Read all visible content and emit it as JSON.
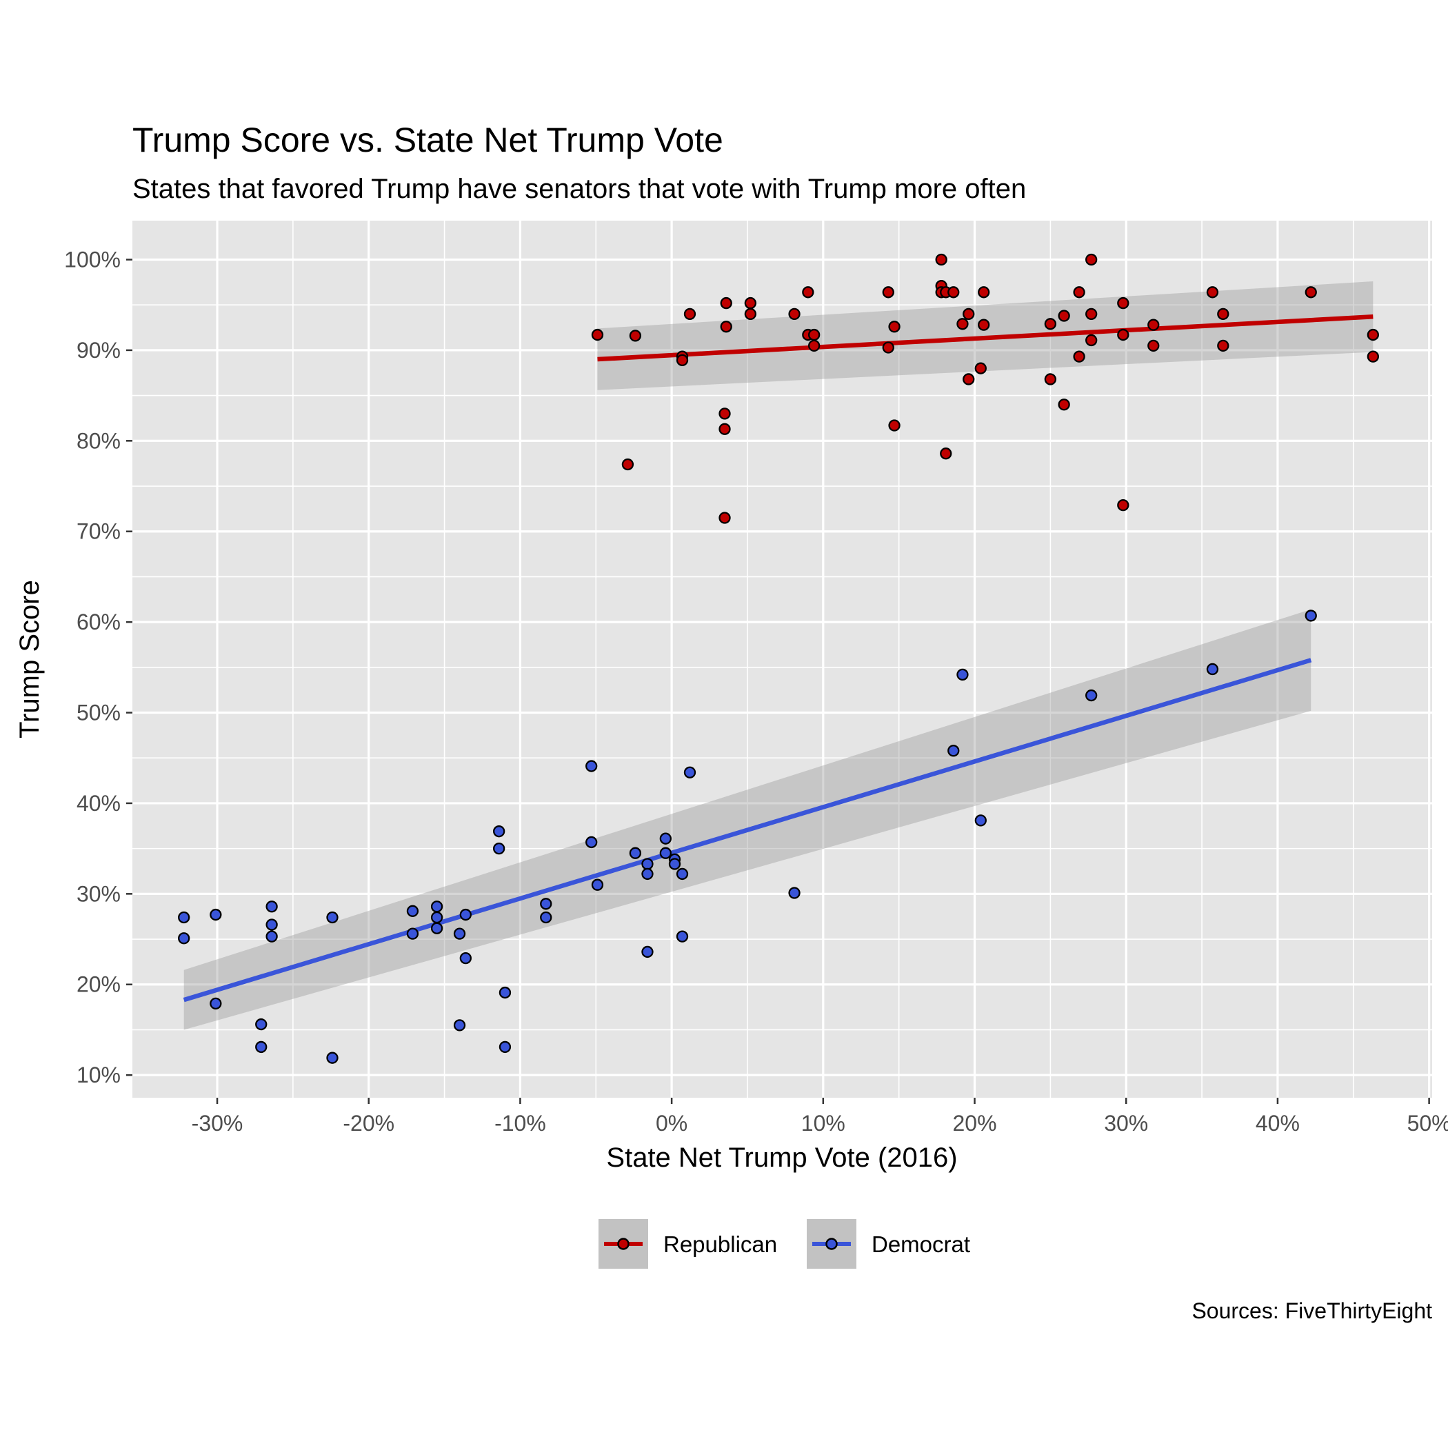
{
  "chart_data": {
    "type": "scatter",
    "title": "Trump Score vs. State Net Trump Vote",
    "subtitle": "States that favored Trump have senators that vote with Trump more often",
    "xlabel": "State Net Trump Vote (2016)",
    "ylabel": "Trump Score",
    "caption": "Sources: FiveThirtyEight",
    "xlim": [
      -35.6,
      50.2
    ],
    "ylim": [
      7.5,
      104.3
    ],
    "x_ticks": [
      -30,
      -20,
      -10,
      0,
      10,
      20,
      30,
      40,
      50
    ],
    "x_tick_labels": [
      "-30%",
      "-20%",
      "-10%",
      "0%",
      "10%",
      "20%",
      "30%",
      "40%",
      "50%"
    ],
    "y_ticks": [
      10,
      20,
      30,
      40,
      50,
      60,
      70,
      80,
      90,
      100
    ],
    "y_tick_labels": [
      "10%",
      "20%",
      "30%",
      "40%",
      "50%",
      "60%",
      "70%",
      "80%",
      "90%",
      "100%"
    ],
    "grid": true,
    "legend_position": "bottom",
    "series": [
      {
        "name": "Republican",
        "color": "#c00000",
        "fit": {
          "x": [
            -4.9,
            46.3
          ],
          "y": [
            89.0,
            93.7
          ],
          "ci_start": [
            85.6,
            92.4
          ],
          "ci_end": [
            89.8,
            97.6
          ]
        },
        "points": [
          [
            17.8,
            100
          ],
          [
            27.7,
            100
          ],
          [
            17.8,
            97.1
          ],
          [
            17.8,
            96.4
          ],
          [
            18.1,
            96.4
          ],
          [
            18.6,
            96.4
          ],
          [
            20.6,
            96.4
          ],
          [
            26.9,
            96.4
          ],
          [
            35.7,
            96.4
          ],
          [
            42.2,
            96.4
          ],
          [
            9.0,
            96.4
          ],
          [
            14.3,
            96.4
          ],
          [
            3.6,
            95.2
          ],
          [
            5.2,
            95.2
          ],
          [
            29.8,
            95.2
          ],
          [
            1.2,
            94.0
          ],
          [
            5.2,
            94.0
          ],
          [
            8.1,
            94.0
          ],
          [
            19.6,
            94.0
          ],
          [
            27.7,
            94.0
          ],
          [
            36.4,
            94.0
          ],
          [
            25.9,
            93.8
          ],
          [
            19.2,
            92.9
          ],
          [
            25.0,
            92.9
          ],
          [
            20.6,
            92.8
          ],
          [
            31.8,
            92.8
          ],
          [
            3.6,
            92.6
          ],
          [
            14.7,
            92.6
          ],
          [
            -4.9,
            91.7
          ],
          [
            -2.4,
            91.6
          ],
          [
            9.0,
            91.7
          ],
          [
            9.4,
            91.7
          ],
          [
            29.8,
            91.7
          ],
          [
            46.3,
            91.7
          ],
          [
            27.7,
            91.1
          ],
          [
            9.4,
            90.5
          ],
          [
            31.8,
            90.5
          ],
          [
            36.4,
            90.5
          ],
          [
            14.3,
            90.3
          ],
          [
            0.7,
            89.3
          ],
          [
            26.9,
            89.3
          ],
          [
            46.3,
            89.3
          ],
          [
            0.7,
            88.9
          ],
          [
            20.4,
            88.0
          ],
          [
            19.6,
            86.8
          ],
          [
            25.0,
            86.8
          ],
          [
            25.9,
            84.0
          ],
          [
            3.5,
            83.0
          ],
          [
            3.5,
            81.3
          ],
          [
            14.7,
            81.7
          ],
          [
            18.1,
            78.6
          ],
          [
            -2.9,
            77.4
          ],
          [
            29.8,
            72.9
          ],
          [
            3.5,
            71.5
          ]
        ]
      },
      {
        "name": "Democrat",
        "color": "#3a55d9",
        "fit": {
          "x": [
            -32.2,
            42.2
          ],
          "y": [
            18.3,
            55.8
          ],
          "ci_start": [
            15.0,
            21.6
          ],
          "ci_end": [
            50.2,
            61.4
          ]
        },
        "points": [
          [
            42.2,
            60.7
          ],
          [
            35.7,
            54.8
          ],
          [
            19.2,
            54.2
          ],
          [
            27.7,
            51.9
          ],
          [
            18.6,
            45.8
          ],
          [
            -5.3,
            44.1
          ],
          [
            1.2,
            43.4
          ],
          [
            20.4,
            38.1
          ],
          [
            -11.4,
            36.9
          ],
          [
            -11.4,
            35.0
          ],
          [
            -5.3,
            35.7
          ],
          [
            -0.4,
            36.1
          ],
          [
            -2.4,
            34.5
          ],
          [
            -0.4,
            34.5
          ],
          [
            0.2,
            33.8
          ],
          [
            -1.6,
            33.3
          ],
          [
            0.2,
            33.3
          ],
          [
            -1.6,
            32.2
          ],
          [
            0.7,
            32.2
          ],
          [
            -4.9,
            31.0
          ],
          [
            8.1,
            30.1
          ],
          [
            -8.3,
            28.9
          ],
          [
            -32.2,
            27.4
          ],
          [
            -30.1,
            27.7
          ],
          [
            -26.4,
            28.6
          ],
          [
            -26.4,
            26.6
          ],
          [
            -26.4,
            25.3
          ],
          [
            -22.4,
            27.4
          ],
          [
            -17.1,
            28.1
          ],
          [
            -17.1,
            25.6
          ],
          [
            -15.5,
            28.6
          ],
          [
            -15.5,
            27.4
          ],
          [
            -15.5,
            26.2
          ],
          [
            -13.6,
            27.7
          ],
          [
            -14.0,
            25.6
          ],
          [
            -13.6,
            22.9
          ],
          [
            -8.3,
            27.4
          ],
          [
            -32.2,
            25.1
          ],
          [
            0.7,
            25.3
          ],
          [
            -1.6,
            23.6
          ],
          [
            -30.1,
            17.9
          ],
          [
            -11.0,
            19.1
          ],
          [
            -27.1,
            15.6
          ],
          [
            -14.0,
            15.5
          ],
          [
            -27.1,
            13.1
          ],
          [
            -11.0,
            13.1
          ],
          [
            -22.4,
            11.9
          ]
        ]
      }
    ]
  }
}
